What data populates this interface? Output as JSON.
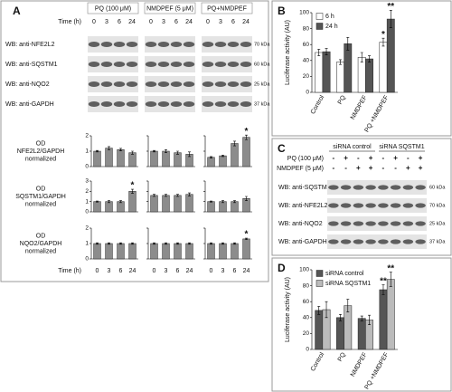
{
  "panel_labels": [
    "A",
    "B",
    "C",
    "D"
  ],
  "blots_a": {
    "groups": [
      "PQ (100 μM)",
      "NMDPEF (5 μM)",
      "PQ+NMDPEF"
    ],
    "time_label": "Time (h)",
    "times": [
      [
        "0",
        "3",
        "6",
        "24"
      ],
      [
        "0",
        "3",
        "6",
        "24"
      ],
      [
        "0",
        "3",
        "6",
        "24"
      ]
    ],
    "rows": [
      {
        "label": "WB: anti-NFE2L2",
        "marker": "70 kDa"
      },
      {
        "label": "WB: anti-SQSTM1",
        "marker": "60 kDa"
      },
      {
        "label": "WB: anti-NQO2",
        "marker": "25 kDa"
      },
      {
        "label": "WB: anti-GAPDH",
        "marker": "37 kDa"
      }
    ]
  },
  "time_footer": {
    "label": "Time (h)",
    "times": [
      [
        "0",
        "3",
        "6",
        "24"
      ],
      [
        "0",
        "3",
        "6",
        "24"
      ],
      [
        "0",
        "3",
        "6",
        "24"
      ]
    ]
  },
  "chart_data": [
    {
      "type": "bar",
      "ylabel": [
        "OD",
        "NFE2L2/GAPDH",
        "normalized"
      ],
      "values": [
        1,
        1.2,
        1.1,
        0.9
      ],
      "errors": [
        0.05,
        0.1,
        0.08,
        0.1
      ],
      "ylim": [
        0,
        2
      ],
      "yticks": [
        0,
        1,
        2
      ],
      "color": "#8c8c8c"
    },
    {
      "type": "bar",
      "values": [
        1,
        1.0,
        0.9,
        0.8
      ],
      "errors": [
        0.05,
        0.1,
        0.1,
        0.15
      ],
      "ylim": [
        0,
        2
      ],
      "yticks": [
        0,
        1,
        2
      ],
      "color": "#8c8c8c"
    },
    {
      "type": "bar",
      "values": [
        0.6,
        0.7,
        1.5,
        1.9
      ],
      "errors": [
        0.05,
        0.05,
        0.15,
        0.15
      ],
      "ylim": [
        0,
        2
      ],
      "yticks": [
        0,
        1,
        2
      ],
      "color": "#8c8c8c",
      "annotations": [
        {
          "index": 3,
          "text": "*"
        }
      ]
    },
    {
      "type": "bar",
      "ylabel": [
        "OD",
        "SQSTM1/GAPDH",
        "normalized"
      ],
      "values": [
        1,
        1,
        1,
        2
      ],
      "errors": [
        0.05,
        0.1,
        0.1,
        0.2
      ],
      "ylim": [
        0,
        3
      ],
      "yticks": [
        0,
        1,
        2,
        3
      ],
      "color": "#8c8c8c",
      "annotations": [
        {
          "index": 3,
          "text": "*"
        }
      ]
    },
    {
      "type": "bar",
      "values": [
        1.6,
        1.6,
        1.6,
        1.7
      ],
      "errors": [
        0.1,
        0.1,
        0.1,
        0.15
      ],
      "ylim": [
        0,
        3
      ],
      "yticks": [
        0,
        1,
        2,
        3
      ],
      "color": "#8c8c8c"
    },
    {
      "type": "bar",
      "values": [
        1,
        1,
        1,
        1.3
      ],
      "errors": [
        0.05,
        0.1,
        0.1,
        0.2
      ],
      "ylim": [
        0,
        3
      ],
      "yticks": [
        0,
        1,
        2,
        3
      ],
      "color": "#8c8c8c"
    },
    {
      "type": "bar",
      "ylabel": [
        "OD",
        "NQO2/GAPDH",
        "normalized"
      ],
      "values": [
        1,
        1,
        1,
        1
      ],
      "errors": [
        0.05,
        0.05,
        0.05,
        0.05
      ],
      "ylim": [
        0,
        2
      ],
      "yticks": [
        0,
        1,
        2
      ],
      "color": "#8c8c8c"
    },
    {
      "type": "bar",
      "values": [
        1,
        1,
        1,
        1
      ],
      "errors": [
        0.05,
        0.05,
        0.05,
        0.05
      ],
      "ylim": [
        0,
        2
      ],
      "yticks": [
        0,
        1,
        2
      ],
      "color": "#8c8c8c"
    },
    {
      "type": "bar",
      "values": [
        1,
        1,
        1,
        1.3
      ],
      "errors": [
        0.05,
        0.05,
        0.05,
        0.05
      ],
      "ylim": [
        0,
        2
      ],
      "yticks": [
        0,
        1,
        2
      ],
      "color": "#8c8c8c",
      "annotations": [
        {
          "index": 3,
          "text": "*"
        }
      ]
    },
    {
      "type": "bar",
      "ylabel": "Luciferase activity (AU)",
      "categories": [
        "Control",
        "PQ",
        "NMDPEF",
        "PQ +NMDPEF"
      ],
      "series": [
        {
          "name": "6 h",
          "color": "#ffffff",
          "values": [
            50,
            38,
            44,
            63
          ],
          "errors": [
            4,
            3,
            6,
            5
          ],
          "annotations": [
            {
              "index": 3,
              "text": "*"
            }
          ]
        },
        {
          "name": "24 h",
          "color": "#555555",
          "values": [
            51,
            61,
            42,
            92
          ],
          "errors": [
            4,
            8,
            4,
            11
          ],
          "annotations": [
            {
              "index": 3,
              "text": "**"
            }
          ]
        }
      ],
      "ylim": [
        0,
        100
      ],
      "yticks": [
        0,
        20,
        40,
        60,
        80,
        100
      ]
    },
    {
      "type": "bar",
      "ylabel": "Luciferase activity (AU)",
      "categories": [
        "Control",
        "PQ",
        "NMDPEF",
        "PQ +NMDPEF"
      ],
      "series": [
        {
          "name": "siRNA control",
          "color": "#555555",
          "values": [
            49,
            40,
            39,
            75
          ],
          "errors": [
            5,
            4,
            3,
            6
          ],
          "annotations": [
            {
              "index": 3,
              "text": "**"
            }
          ]
        },
        {
          "name": "siRNA SQSTM1",
          "color": "#bbbbbb",
          "values": [
            50,
            55,
            37,
            88
          ],
          "errors": [
            10,
            8,
            6,
            9
          ],
          "annotations": [
            {
              "index": 3,
              "text": "**"
            }
          ]
        }
      ],
      "ylim": [
        0,
        100
      ],
      "yticks": [
        0,
        20,
        40,
        60,
        80,
        100
      ]
    }
  ],
  "blots_c": {
    "groups": [
      "siRNA control",
      "siRNA SQSTM1"
    ],
    "treatments": [
      {
        "label": "PQ (100 μM)",
        "signs": [
          "-",
          "+",
          "-",
          "+",
          "-",
          "+",
          "-",
          "+"
        ]
      },
      {
        "label": "NMDPEF (5 μM)",
        "signs": [
          "-",
          "-",
          "+",
          "+",
          "-",
          "-",
          "+",
          "+"
        ]
      }
    ],
    "rows": [
      {
        "label": "WB: anti-SQSTM1",
        "marker": "60 kDa"
      },
      {
        "label": "WB: anti-NFE2L2",
        "marker": "70 kDa"
      },
      {
        "label": "WB: anti-NQO2",
        "marker": "25 kDa"
      },
      {
        "label": "WB: anti-GAPDH",
        "marker": "37 kDa"
      }
    ]
  }
}
